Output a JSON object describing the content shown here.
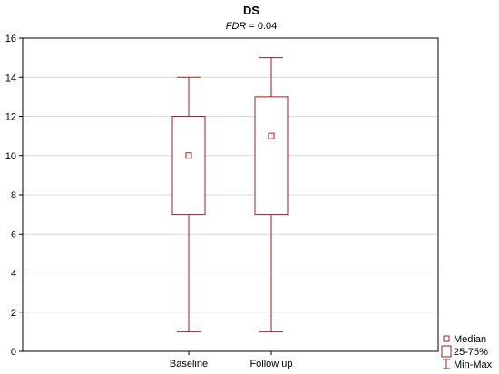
{
  "chart_data": {
    "type": "box",
    "title": "DS",
    "subtitle": {
      "prefix": "FDR",
      "suffix": " = 0.04"
    },
    "xlabel": "",
    "ylabel": "",
    "ylim": [
      0,
      16
    ],
    "yticks": [
      0,
      2,
      4,
      6,
      8,
      10,
      12,
      14,
      16
    ],
    "grid": true,
    "categories": [
      "Baseline",
      "Follow up"
    ],
    "boxes": [
      {
        "category": "Baseline",
        "min": 1,
        "q1": 7,
        "median": 10,
        "q3": 12,
        "max": 14
      },
      {
        "category": "Follow up",
        "min": 1,
        "q1": 7,
        "median": 11,
        "q3": 13,
        "max": 15
      }
    ],
    "legend": {
      "position": "bottom-right",
      "items": [
        {
          "label": "Median",
          "symbol": "small-square"
        },
        {
          "label": "25-75%",
          "symbol": "box"
        },
        {
          "label": "Min-Max",
          "symbol": "whisker"
        }
      ]
    },
    "colors": {
      "series": "#a31e22",
      "grid": "#d9d9d9",
      "axis": "#000000"
    }
  }
}
